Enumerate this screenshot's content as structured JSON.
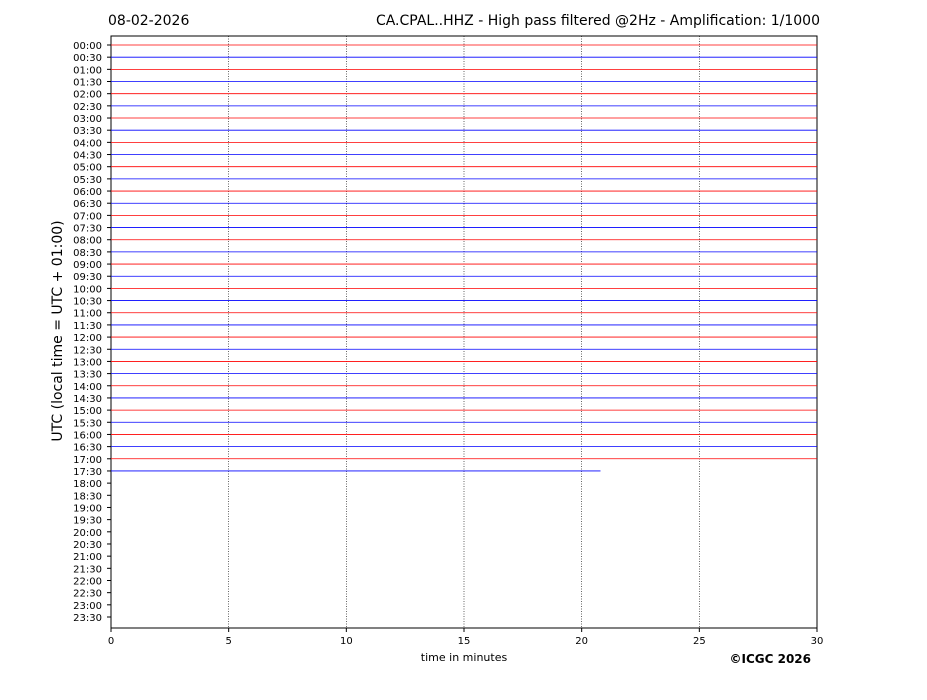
{
  "chart_data": {
    "type": "helicorder",
    "date": "08-02-2026",
    "title": "CA.CPAL..HHZ - High pass filtered @2Hz - Amplification: 1/1000",
    "ylabel": "UTC (local time = UTC + 01:00)",
    "xlabel": "time in minutes",
    "credit": "©ICGC 2026",
    "categories": [
      "00:00",
      "00:30",
      "01:00",
      "01:30",
      "02:00",
      "02:30",
      "03:00",
      "03:30",
      "04:00",
      "04:30",
      "05:00",
      "05:30",
      "06:00",
      "06:30",
      "07:00",
      "07:30",
      "08:00",
      "08:30",
      "09:00",
      "09:30",
      "10:00",
      "10:30",
      "11:00",
      "11:30",
      "12:00",
      "12:30",
      "13:00",
      "13:30",
      "14:00",
      "14:30",
      "15:00",
      "15:30",
      "16:00",
      "16:30",
      "17:00",
      "17:30",
      "18:00",
      "18:30",
      "19:00",
      "19:30",
      "20:00",
      "20:30",
      "21:00",
      "21:30",
      "22:00",
      "22:30",
      "23:00",
      "23:30"
    ],
    "values": [
      30,
      30,
      30,
      30,
      30,
      30,
      30,
      30,
      30,
      30,
      30,
      30,
      30,
      30,
      30,
      30,
      30,
      30,
      30,
      30,
      30,
      30,
      30,
      30,
      30,
      30,
      30,
      30,
      30,
      30,
      30,
      30,
      30,
      30,
      30,
      20.8,
      null,
      null,
      null,
      null,
      null,
      null,
      null,
      null,
      null,
      null,
      null,
      null
    ],
    "colors": [
      "#ff0000",
      "#0000ff"
    ],
    "xlim": [
      0,
      30
    ],
    "xticks": [
      0,
      5,
      10,
      15,
      20,
      25,
      30
    ],
    "grid": true
  }
}
